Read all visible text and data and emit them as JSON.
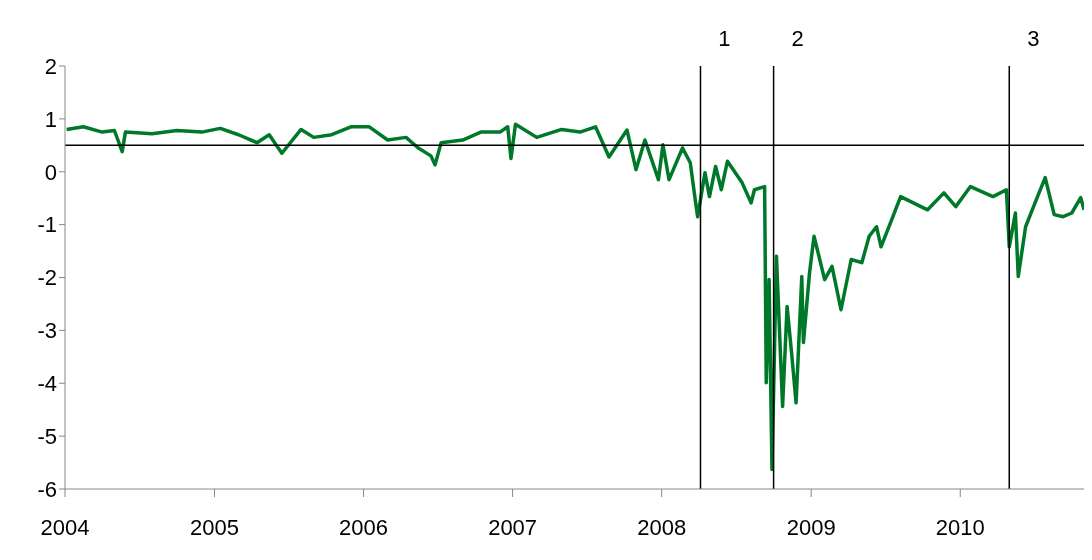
{
  "chart_data": {
    "type": "line",
    "x": [
      "2004-01-05",
      "2004-02-15",
      "2004-04-01",
      "2004-05-01",
      "2004-05-20",
      "2004-05-28",
      "2004-08-01",
      "2004-10-01",
      "2004-12-01",
      "2005-01-15",
      "2005-03-01",
      "2005-04-15",
      "2005-05-15",
      "2005-06-15",
      "2005-08-01",
      "2005-09-01",
      "2005-10-15",
      "2005-12-01",
      "2006-01-15",
      "2006-03-01",
      "2006-04-15",
      "2006-05-15",
      "2006-06-15",
      "2006-06-25",
      "2006-07-10",
      "2006-09-01",
      "2006-10-15",
      "2006-12-01",
      "2006-12-20",
      "2006-12-28",
      "2007-01-08",
      "2007-03-01",
      "2007-05-01",
      "2007-06-15",
      "2007-07-23",
      "2007-08-25",
      "2007-10-08",
      "2007-10-30",
      "2007-11-21",
      "2007-12-24",
      "2008-01-04",
      "2008-01-19",
      "2008-02-21",
      "2008-03-11",
      "2008-03-22",
      "2008-03-29",
      "2008-04-16",
      "2008-04-27",
      "2008-05-12",
      "2008-05-26",
      "2008-06-10",
      "2008-07-16",
      "2008-08-07",
      "2008-08-15",
      "2008-09-09",
      "2008-09-13",
      "2008-09-20",
      "2008-09-27",
      "2008-10-08",
      "2008-10-23",
      "2008-11-03",
      "2008-11-14",
      "2008-11-25",
      "2008-12-09",
      "2008-12-13",
      "2008-12-28",
      "2009-01-08",
      "2009-02-03",
      "2009-02-21",
      "2009-03-15",
      "2009-04-09",
      "2009-05-05",
      "2009-05-23",
      "2009-06-10",
      "2009-06-21",
      "2009-07-17",
      "2009-08-08",
      "2009-10-13",
      "2009-11-22",
      "2009-12-21",
      "2010-01-26",
      "2010-03-22",
      "2010-04-24",
      "2010-05-01",
      "2010-05-16",
      "2010-05-23",
      "2010-06-10",
      "2010-07-06",
      "2010-07-28",
      "2010-08-19",
      "2010-09-10",
      "2010-10-01",
      "2010-10-23",
      "2010-10-31"
    ],
    "values": [
      0.8,
      0.85,
      0.75,
      0.78,
      0.38,
      0.75,
      0.72,
      0.78,
      0.75,
      0.82,
      0.7,
      0.55,
      0.7,
      0.35,
      0.8,
      0.65,
      0.7,
      0.85,
      0.85,
      0.6,
      0.65,
      0.45,
      0.3,
      0.13,
      0.55,
      0.6,
      0.75,
      0.75,
      0.85,
      0.25,
      0.9,
      0.65,
      0.8,
      0.75,
      0.85,
      0.28,
      0.79,
      0.04,
      0.6,
      -0.15,
      0.51,
      -0.15,
      0.45,
      0.17,
      -0.47,
      -0.85,
      -0.02,
      -0.47,
      0.1,
      -0.34,
      0.2,
      -0.21,
      -0.59,
      -0.34,
      -0.28,
      -3.99,
      -2.04,
      -5.63,
      -1.6,
      -4.44,
      -2.55,
      -3.42,
      -4.37,
      -1.98,
      -3.23,
      -1.91,
      -1.22,
      -2.04,
      -1.79,
      -2.61,
      -1.66,
      -1.72,
      -1.22,
      -1.04,
      -1.42,
      -0.91,
      -0.47,
      -0.72,
      -0.4,
      -0.66,
      -0.28,
      -0.47,
      -0.34,
      -1.42,
      -0.78,
      -1.98,
      -1.04,
      -0.53,
      -0.11,
      -0.81,
      -0.85,
      -0.78,
      -0.49,
      -0.72
    ],
    "color": "#00782a",
    "xlim": [
      "2004-01-01",
      "2010-10-31"
    ],
    "xticks": [
      "2004",
      "2005",
      "2006",
      "2007",
      "2008",
      "2009",
      "2010"
    ],
    "ylim": [
      -6,
      2
    ],
    "yticks": [
      -6,
      -5,
      -4,
      -3,
      -2,
      -1,
      0,
      1,
      2
    ],
    "ref_lines": [
      {
        "axis": "y",
        "value": 0.5,
        "color": "#000000"
      },
      {
        "axis": "x",
        "value": "2008-04-05",
        "label": "1",
        "color": "#000000"
      },
      {
        "axis": "x",
        "value": "2008-10-01",
        "label": "2",
        "color": "#000000"
      },
      {
        "axis": "x",
        "value": "2010-05-01",
        "label": "3",
        "color": "#000000"
      }
    ]
  }
}
